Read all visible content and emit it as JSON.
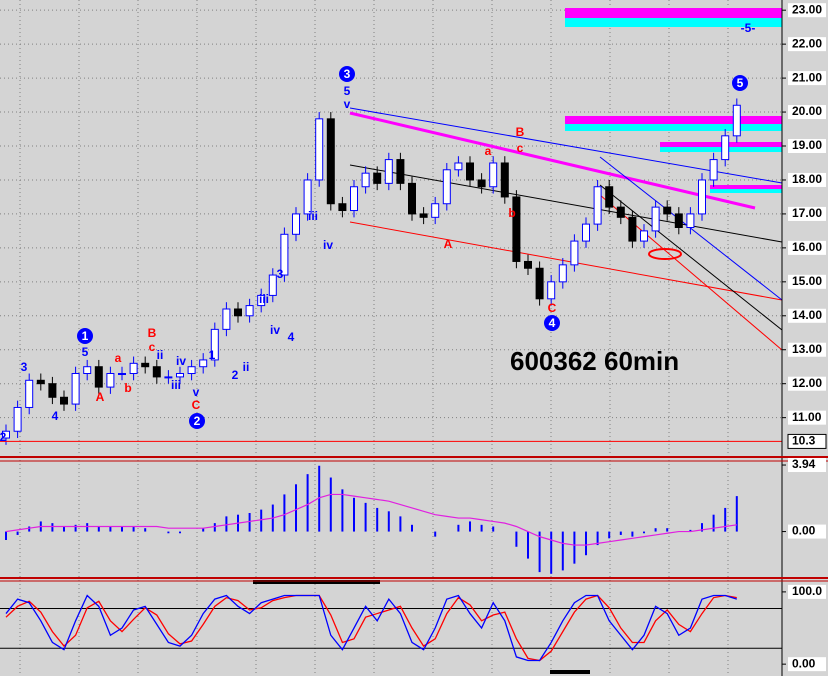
{
  "chart_data": [
    {
      "type": "candlestick",
      "title": "600362 60min",
      "open": [
        10.4,
        10.6,
        11.3,
        12.1,
        12.0,
        11.6,
        11.4,
        12.3,
        12.5,
        11.9,
        12.3,
        12.3,
        12.6,
        12.5,
        12.2,
        12.2,
        12.3,
        12.5,
        12.7,
        13.6,
        14.2,
        14.0,
        14.3,
        14.6,
        15.2,
        16.4,
        17.0,
        18.0,
        19.8,
        17.3,
        17.1,
        17.8,
        18.2,
        17.9,
        18.6,
        17.9,
        17.0,
        16.9,
        17.3,
        18.3,
        18.5,
        18.0,
        17.8,
        18.5,
        17.5,
        15.6,
        15.4,
        14.5,
        15.0,
        15.5,
        16.2,
        16.7,
        17.8,
        17.2,
        16.9,
        16.2,
        16.5,
        17.2,
        17.0,
        16.6,
        17.0,
        18.0,
        18.6,
        19.3
      ],
      "high": [
        10.8,
        11.5,
        12.3,
        12.3,
        12.2,
        11.8,
        12.5,
        12.7,
        12.7,
        12.5,
        12.5,
        12.8,
        12.8,
        12.7,
        12.4,
        12.5,
        12.7,
        12.9,
        13.8,
        14.4,
        14.4,
        14.5,
        14.8,
        15.4,
        16.6,
        17.2,
        18.2,
        20.0,
        20.0,
        17.5,
        18.0,
        18.4,
        18.4,
        18.8,
        18.8,
        18.1,
        17.2,
        17.5,
        18.5,
        18.7,
        18.7,
        18.2,
        18.7,
        18.7,
        17.7,
        15.8,
        15.6,
        15.2,
        15.7,
        16.4,
        16.9,
        18.0,
        18.0,
        17.4,
        17.1,
        16.7,
        17.4,
        17.4,
        17.2,
        17.2,
        18.2,
        18.8,
        19.5,
        20.4
      ],
      "low": [
        10.2,
        10.4,
        11.1,
        11.8,
        11.4,
        11.2,
        11.2,
        12.1,
        11.7,
        11.7,
        12.1,
        12.1,
        12.3,
        12.0,
        12.0,
        12.0,
        12.1,
        12.3,
        12.5,
        13.4,
        13.8,
        13.8,
        14.1,
        14.4,
        15.0,
        16.2,
        16.8,
        17.8,
        17.1,
        16.9,
        16.9,
        17.6,
        17.7,
        17.7,
        17.7,
        16.8,
        16.7,
        16.7,
        17.1,
        18.1,
        17.8,
        17.6,
        17.6,
        17.3,
        15.4,
        15.2,
        14.3,
        14.3,
        14.8,
        15.3,
        16.0,
        16.5,
        17.0,
        16.7,
        16.0,
        16.0,
        16.3,
        16.8,
        16.4,
        16.4,
        16.8,
        17.8,
        18.4,
        19.1
      ],
      "close": [
        10.6,
        11.3,
        12.1,
        12.0,
        11.6,
        11.4,
        12.3,
        12.5,
        11.9,
        12.3,
        12.3,
        12.6,
        12.5,
        12.2,
        12.2,
        12.3,
        12.5,
        12.7,
        13.6,
        14.2,
        14.0,
        14.3,
        14.6,
        15.2,
        16.4,
        17.0,
        18.0,
        19.8,
        17.3,
        17.1,
        17.8,
        18.2,
        17.9,
        18.6,
        17.9,
        17.0,
        16.9,
        17.3,
        18.3,
        18.5,
        18.0,
        17.8,
        18.5,
        17.5,
        15.6,
        15.4,
        14.5,
        15.0,
        15.5,
        16.2,
        16.7,
        17.8,
        17.2,
        16.9,
        16.2,
        16.5,
        17.2,
        17.0,
        16.6,
        17.0,
        18.0,
        18.6,
        19.3,
        20.2
      ],
      "up_color": "#0000ff",
      "down_color": "#000000",
      "ylim": [
        9.9,
        23.3
      ],
      "yticks": [
        {
          "value": 11,
          "label": "11.00"
        },
        {
          "value": 12,
          "label": "12.00"
        },
        {
          "value": 13,
          "label": "13.00"
        },
        {
          "value": 14,
          "label": "14.00"
        },
        {
          "value": 15,
          "label": "15.00"
        },
        {
          "value": 16,
          "label": "16.00"
        },
        {
          "value": 17,
          "label": "17.00"
        },
        {
          "value": 18,
          "label": "18.00"
        },
        {
          "value": 19,
          "label": "19.00"
        },
        {
          "value": 20,
          "label": "20.00"
        },
        {
          "value": 21,
          "label": "21.00"
        },
        {
          "value": 22,
          "label": "22.00"
        },
        {
          "value": 23,
          "label": "23.00"
        }
      ],
      "marker": {
        "value": 10.3,
        "label": "10.3"
      },
      "grid": true,
      "annotations": [
        {
          "text": "2",
          "color": "#0000ff",
          "circled": false
        },
        {
          "text": "3",
          "color": "#0000ff",
          "circled": false
        },
        {
          "text": "4",
          "color": "#0000ff",
          "circled": false
        },
        {
          "text": "1",
          "color": "#0000ff",
          "circled": true
        },
        {
          "text": "5",
          "color": "#0000ff",
          "circled": false
        },
        {
          "text": "A",
          "color": "#ff0000",
          "circled": false
        },
        {
          "text": "a",
          "color": "#ff0000",
          "circled": false
        },
        {
          "text": "b",
          "color": "#ff0000",
          "circled": false
        },
        {
          "text": "B",
          "color": "#ff0000",
          "circled": false
        },
        {
          "text": "c",
          "color": "#ff0000",
          "circled": false
        },
        {
          "text": "ii",
          "color": "#0000ff",
          "circled": false
        },
        {
          "text": "iv",
          "color": "#0000ff",
          "circled": false
        },
        {
          "text": "iii",
          "color": "#0000ff",
          "circled": false
        },
        {
          "text": "v",
          "color": "#0000ff",
          "circled": false
        },
        {
          "text": "C",
          "color": "#ff0000",
          "circled": false
        },
        {
          "text": "2",
          "color": "#0000ff",
          "circled": true
        },
        {
          "text": "1",
          "color": "#0000ff",
          "circled": false
        },
        {
          "text": "2",
          "color": "#0000ff",
          "circled": false
        },
        {
          "text": "ii",
          "color": "#0000ff",
          "circled": false
        },
        {
          "text": "iii",
          "color": "#0000ff",
          "circled": false
        },
        {
          "text": "3",
          "color": "#0000ff",
          "circled": false
        },
        {
          "text": "iv",
          "color": "#0000ff",
          "circled": false
        },
        {
          "text": "4",
          "color": "#0000ff",
          "circled": false
        },
        {
          "text": "iii",
          "color": "#0000ff",
          "circled": false
        },
        {
          "text": "iv",
          "color": "#0000ff",
          "circled": false
        },
        {
          "text": "3",
          "color": "#0000ff",
          "circled": true
        },
        {
          "text": "5",
          "color": "#0000ff",
          "circled": false
        },
        {
          "text": "v",
          "color": "#0000ff",
          "circled": false
        },
        {
          "text": "a",
          "color": "#ff0000",
          "circled": false
        },
        {
          "text": "B",
          "color": "#ff0000",
          "circled": false
        },
        {
          "text": "c",
          "color": "#ff0000",
          "circled": false
        },
        {
          "text": "b",
          "color": "#ff0000",
          "circled": false
        },
        {
          "text": "A",
          "color": "#ff0000",
          "circled": false
        },
        {
          "text": "C",
          "color": "#ff0000",
          "circled": false
        },
        {
          "text": "4",
          "color": "#0000ff",
          "circled": true
        },
        {
          "text": "5",
          "color": "#0000ff",
          "circled": true
        },
        {
          "text": "-5-",
          "color": "#0000ff",
          "circled": false
        }
      ]
    },
    {
      "type": "macd",
      "histogram": [
        -0.5,
        -0.2,
        0.3,
        0.6,
        0.5,
        0.3,
        0.4,
        0.5,
        0.3,
        0.3,
        0.3,
        0.3,
        0.2,
        0.0,
        -0.1,
        -0.1,
        0.0,
        0.2,
        0.5,
        0.9,
        1.0,
        1.1,
        1.3,
        1.6,
        2.2,
        2.8,
        3.4,
        3.9,
        3.2,
        2.5,
        2.0,
        1.7,
        1.4,
        1.2,
        0.9,
        0.4,
        0.0,
        -0.3,
        0.0,
        0.4,
        0.6,
        0.4,
        0.3,
        0.0,
        -0.9,
        -1.6,
        -2.4,
        -2.5,
        -2.3,
        -1.9,
        -1.4,
        -0.8,
        -0.4,
        -0.2,
        -0.3,
        -0.1,
        0.2,
        0.2,
        0.0,
        0.1,
        0.5,
        1.0,
        1.4,
        2.1
      ],
      "signal": [
        0.0,
        0.1,
        0.2,
        0.3,
        0.3,
        0.3,
        0.3,
        0.3,
        0.3,
        0.3,
        0.3,
        0.3,
        0.3,
        0.3,
        0.2,
        0.2,
        0.2,
        0.2,
        0.3,
        0.4,
        0.5,
        0.6,
        0.7,
        0.8,
        1.0,
        1.3,
        1.6,
        2.0,
        2.2,
        2.2,
        2.1,
        2.0,
        1.9,
        1.8,
        1.6,
        1.4,
        1.2,
        1.0,
        0.9,
        0.8,
        0.8,
        0.7,
        0.6,
        0.5,
        0.3,
        0.0,
        -0.3,
        -0.5,
        -0.7,
        -0.8,
        -0.8,
        -0.7,
        -0.6,
        -0.5,
        -0.4,
        -0.3,
        -0.2,
        -0.1,
        0.0,
        0.0,
        0.1,
        0.2,
        0.3,
        0.4
      ],
      "histogram_color": "#0000ff",
      "signal_color": "#e020e0",
      "ylim": [
        -2.69,
        4.06
      ],
      "yticks": [
        {
          "value": 0,
          "label": "0.00"
        },
        {
          "value": 3.94,
          "label": "3.94"
        }
      ]
    },
    {
      "type": "stochastic",
      "k": [
        70,
        90,
        85,
        60,
        30,
        20,
        60,
        95,
        80,
        40,
        50,
        75,
        80,
        55,
        30,
        25,
        40,
        70,
        90,
        95,
        80,
        70,
        85,
        90,
        95,
        95,
        95,
        95,
        40,
        20,
        50,
        80,
        60,
        90,
        70,
        30,
        20,
        50,
        90,
        95,
        70,
        50,
        85,
        60,
        10,
        5,
        5,
        30,
        60,
        85,
        95,
        95,
        60,
        40,
        20,
        40,
        80,
        70,
        40,
        50,
        90,
        95,
        95,
        90
      ],
      "d": [
        65,
        80,
        87,
        72,
        45,
        25,
        40,
        78,
        87,
        60,
        45,
        62,
        78,
        68,
        42,
        28,
        32,
        55,
        80,
        92,
        88,
        75,
        78,
        88,
        92,
        95,
        95,
        95,
        68,
        30,
        35,
        65,
        70,
        75,
        80,
        50,
        25,
        35,
        70,
        92,
        82,
        60,
        68,
        72,
        35,
        8,
        5,
        18,
        45,
        72,
        90,
        95,
        78,
        50,
        30,
        30,
        60,
        75,
        55,
        45,
        70,
        92,
        95,
        92
      ],
      "k_color": "#0000ff",
      "d_color": "#ff0000",
      "levels": [
        77,
        22
      ],
      "ylim": [
        -16.4,
        112.3
      ],
      "yticks": [
        {
          "value": 0,
          "label": "0.00"
        },
        {
          "value": 100,
          "label": "100.0"
        }
      ]
    }
  ]
}
